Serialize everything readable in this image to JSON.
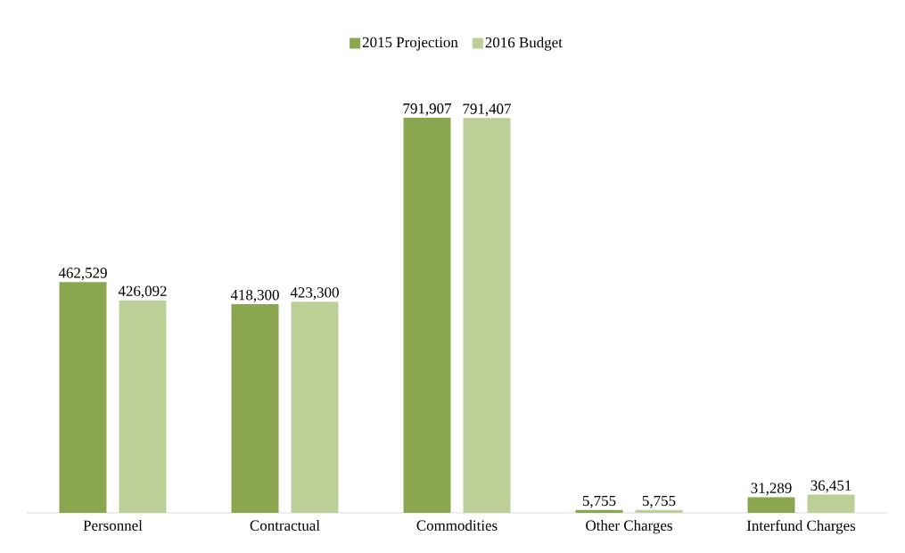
{
  "chart_data": {
    "type": "bar",
    "categories": [
      "Personnel",
      "Contractual",
      "Commodities",
      "Other Charges",
      "Interfund Charges"
    ],
    "series": [
      {
        "name": "2015 Projection",
        "color": "#8aa64f",
        "values": [
          462529,
          418300,
          791907,
          5755,
          31289
        ],
        "value_labels": [
          "462,529",
          "418,300",
          "791,907",
          "5,755",
          "31,289"
        ]
      },
      {
        "name": "2016 Budget",
        "color": "#bccf97",
        "values": [
          426092,
          423300,
          791407,
          5755,
          36451
        ],
        "value_labels": [
          "426,092",
          "423,300",
          "791,407",
          "5,755",
          "36,451"
        ]
      }
    ],
    "legend": "top"
  }
}
